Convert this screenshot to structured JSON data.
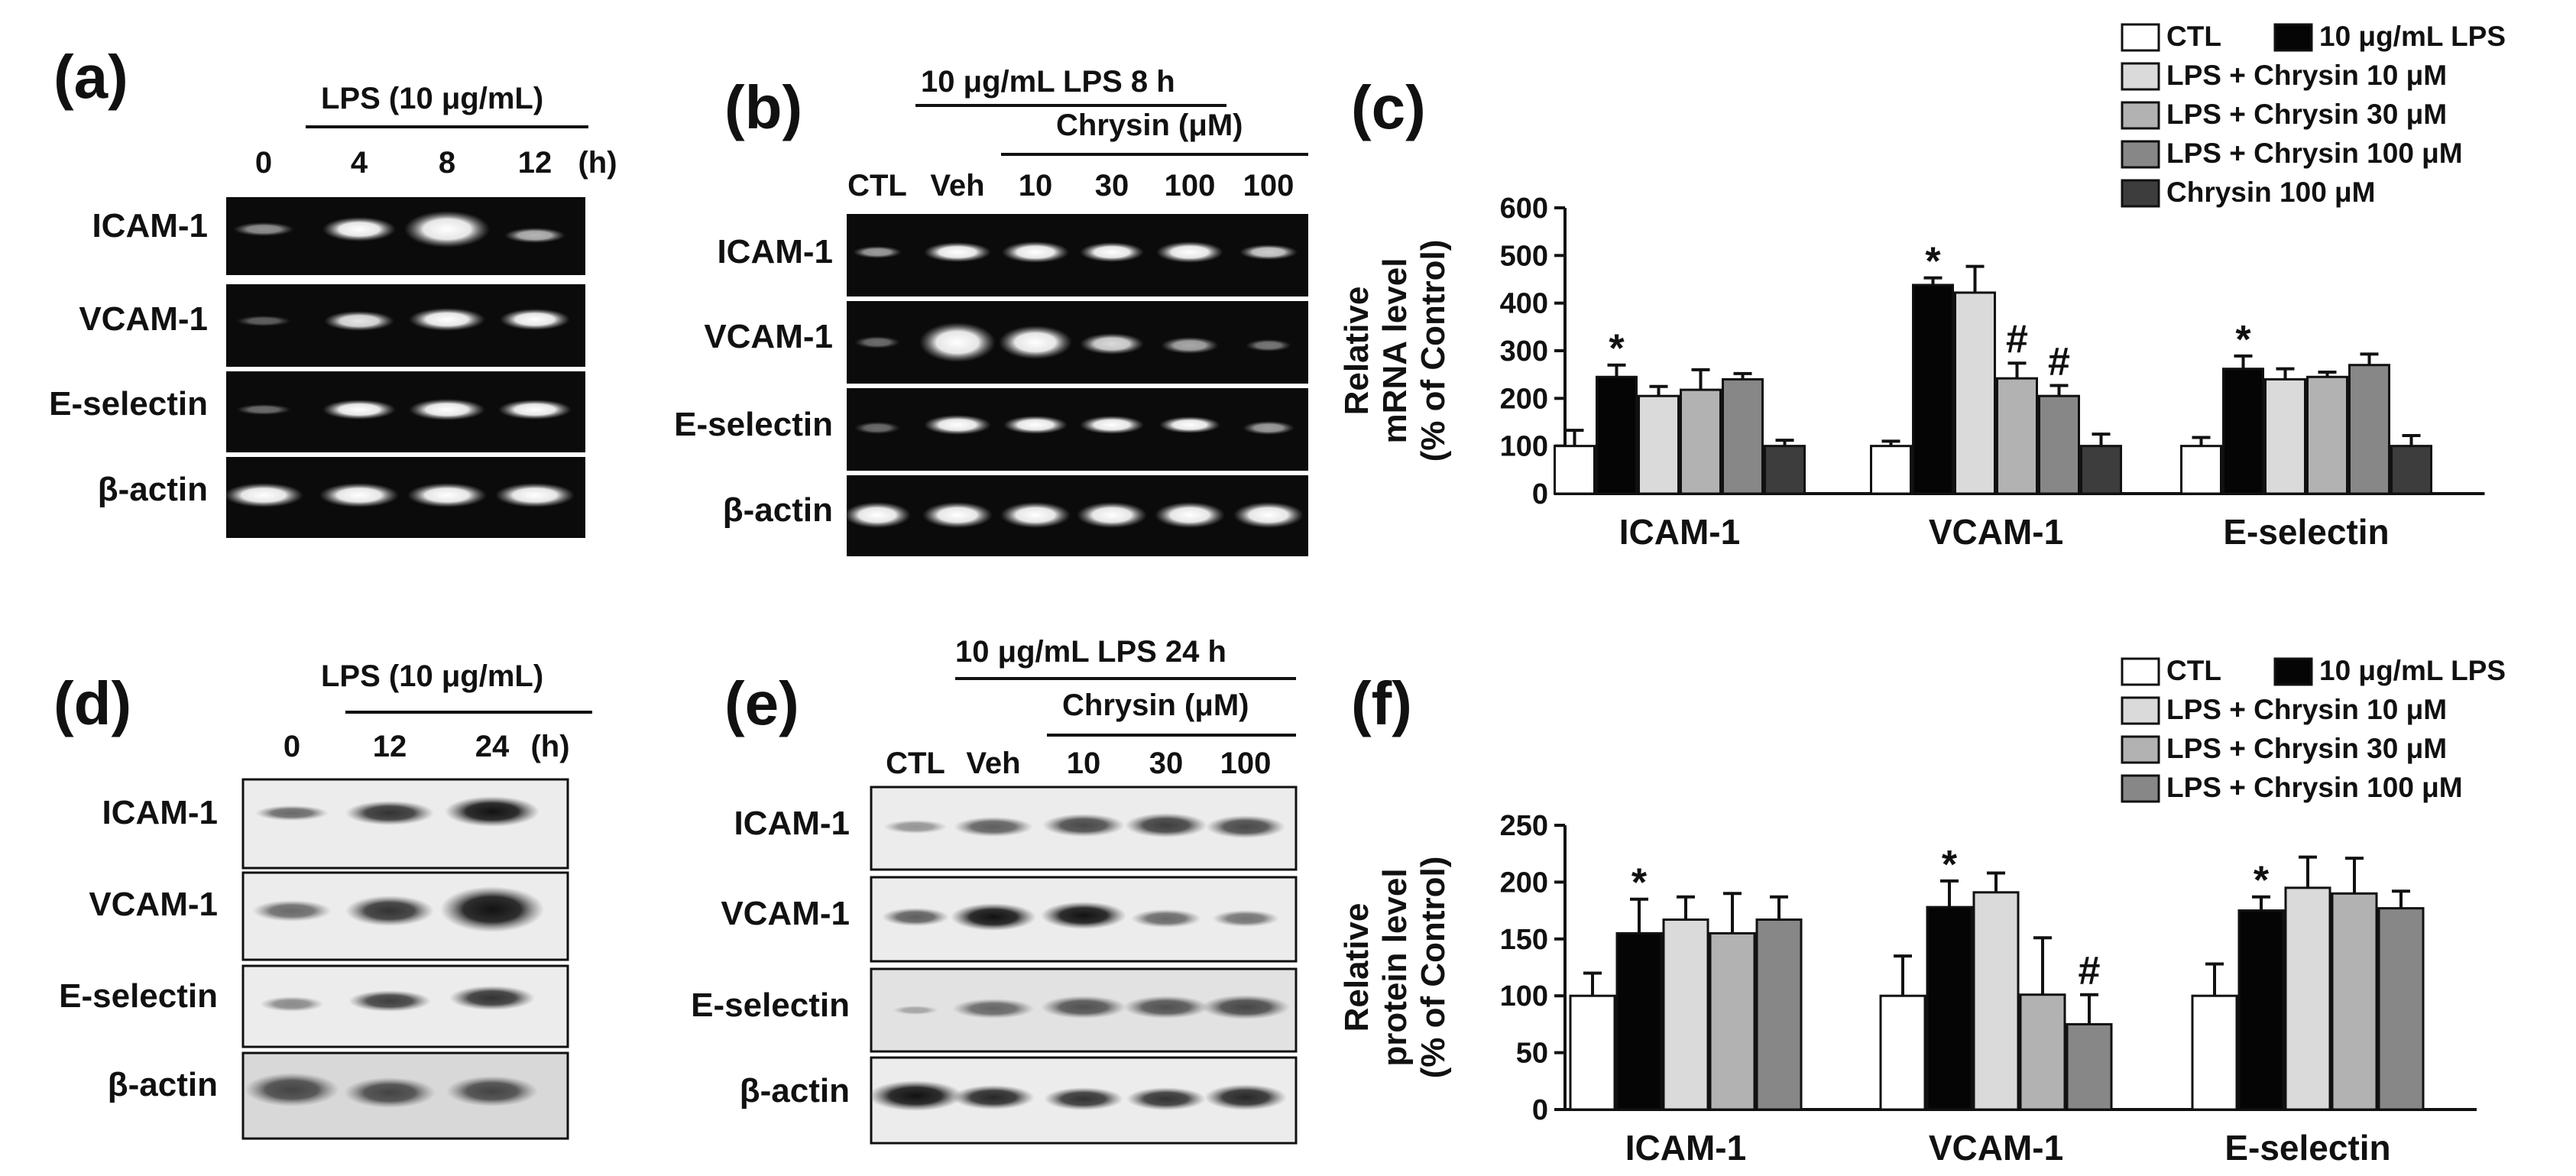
{
  "colors": {
    "series": [
      "#ffffff",
      "#050505",
      "#dadada",
      "#b2b2b2",
      "#878787",
      "#3d3d3d"
    ],
    "gel_background": "#0b0b0b",
    "blot_background": "#ececec"
  },
  "panels": {
    "a": {
      "label": "(a)",
      "header": "LPS (10 μg/mL)",
      "lanes": [
        "0",
        "4",
        "8",
        "12"
      ],
      "unit": "(h)",
      "rows": [
        "ICAM-1",
        "VCAM-1",
        "E-selectin",
        "β-actin"
      ]
    },
    "b": {
      "label": "(b)",
      "header1": "10 μg/mL LPS 8 h",
      "header2": "Chrysin (μM)",
      "lanes": [
        "CTL",
        "Veh",
        "10",
        "30",
        "100",
        "100"
      ],
      "rows": [
        "ICAM-1",
        "VCAM-1",
        "E-selectin",
        "β-actin"
      ]
    },
    "c": {
      "label": "(c)"
    },
    "d": {
      "label": "(d)",
      "header": "LPS (10 μg/mL)",
      "lanes": [
        "0",
        "12",
        "24"
      ],
      "unit": "(h)",
      "rows": [
        "ICAM-1",
        "VCAM-1",
        "E-selectin",
        "β-actin"
      ]
    },
    "e": {
      "label": "(e)",
      "header1": "10 μg/mL LPS 24 h",
      "header2": "Chrysin (μM)",
      "lanes": [
        "CTL",
        "Veh",
        "10",
        "30",
        "100"
      ],
      "rows": [
        "ICAM-1",
        "VCAM-1",
        "E-selectin",
        "β-actin"
      ]
    },
    "f": {
      "label": "(f)"
    }
  },
  "chart_data": [
    {
      "panel": "c",
      "type": "bar",
      "ylabel_line1": "Relative",
      "ylabel_line2": "mRNA level",
      "ylabel_line3": "(% of Control)",
      "ylim": [
        0,
        600
      ],
      "yticks": [
        "0",
        "100",
        "200",
        "300",
        "400",
        "500",
        "600"
      ],
      "categories": [
        "ICAM-1",
        "VCAM-1",
        "E-selectin"
      ],
      "legend": [
        "CTL",
        "10 μg/mL LPS",
        "LPS + Chrysin 10 μM",
        "LPS + Chrysin 30 μM",
        "LPS + Chrysin 100 μM",
        "Chrysin 100 μM"
      ],
      "legend_position": "top-right",
      "series": [
        {
          "name": "CTL",
          "values": [
            100,
            100,
            100
          ],
          "errors": [
            33,
            10,
            18
          ]
        },
        {
          "name": "10 μg/mL LPS",
          "values": [
            245,
            438,
            262
          ],
          "errors": [
            25,
            15,
            27
          ]
        },
        {
          "name": "LPS + Chrysin 10 μM",
          "values": [
            205,
            422,
            240
          ],
          "errors": [
            20,
            55,
            22
          ]
        },
        {
          "name": "LPS + Chrysin 30 μM",
          "values": [
            218,
            242,
            245
          ],
          "errors": [
            42,
            32,
            10
          ]
        },
        {
          "name": "LPS + Chrysin 100 μM",
          "values": [
            240,
            205,
            270
          ],
          "errors": [
            12,
            22,
            23
          ]
        },
        {
          "name": "Chrysin 100 μM",
          "values": [
            100,
            100,
            100
          ],
          "errors": [
            12,
            25,
            22
          ]
        }
      ],
      "annotations": [
        {
          "text": "*",
          "category": "ICAM-1",
          "series": 1
        },
        {
          "text": "*",
          "category": "VCAM-1",
          "series": 1
        },
        {
          "text": "#",
          "category": "VCAM-1",
          "series": 3
        },
        {
          "text": "#",
          "category": "VCAM-1",
          "series": 4
        },
        {
          "text": "*",
          "category": "E-selectin",
          "series": 1
        }
      ]
    },
    {
      "panel": "f",
      "type": "bar",
      "ylabel_line1": "Relative",
      "ylabel_line2": "protein level",
      "ylabel_line3": "(% of Control)",
      "ylim": [
        0,
        250
      ],
      "yticks": [
        "0",
        "50",
        "100",
        "150",
        "200",
        "250"
      ],
      "categories": [
        "ICAM-1",
        "VCAM-1",
        "E-selectin"
      ],
      "legend": [
        "CTL",
        "10 μg/mL LPS",
        "LPS + Chrysin 10 μM",
        "LPS + Chrysin 30 μM",
        "LPS + Chrysin 100 μM"
      ],
      "legend_position": "top-right",
      "series": [
        {
          "name": "CTL",
          "values": [
            100,
            100,
            100
          ],
          "errors": [
            20,
            35,
            28
          ]
        },
        {
          "name": "10 μg/mL LPS",
          "values": [
            155,
            178,
            175
          ],
          "errors": [
            30,
            23,
            12
          ]
        },
        {
          "name": "LPS + Chrysin 10 μM",
          "values": [
            167,
            191,
            195
          ],
          "errors": [
            20,
            17,
            27
          ]
        },
        {
          "name": "LPS + Chrysin 30 μM",
          "values": [
            155,
            101,
            190
          ],
          "errors": [
            35,
            50,
            31
          ]
        },
        {
          "name": "LPS + Chrysin 100 μM",
          "values": [
            167,
            75,
            177
          ],
          "errors": [
            20,
            26,
            15
          ]
        }
      ],
      "annotations": [
        {
          "text": "*",
          "category": "ICAM-1",
          "series": 1
        },
        {
          "text": "*",
          "category": "VCAM-1",
          "series": 1
        },
        {
          "text": "#",
          "category": "VCAM-1",
          "series": 4
        },
        {
          "text": "*",
          "category": "E-selectin",
          "series": 1
        }
      ]
    }
  ]
}
